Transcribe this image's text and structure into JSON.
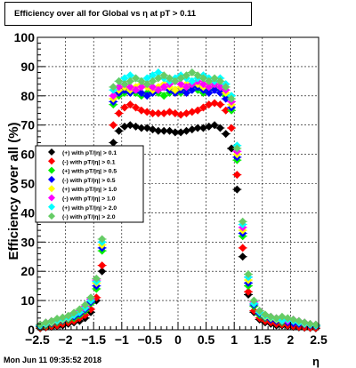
{
  "chart_data": {
    "type": "scatter",
    "title": "Efficiency over all for Global vs   η at pT > 0.11",
    "xlabel": "η",
    "ylabel": "Efficiency over all (%)",
    "xlim": [
      -2.5,
      2.5
    ],
    "ylim": [
      0,
      100
    ],
    "x_ticks": [
      -2.5,
      -2,
      -1.5,
      -1,
      -0.5,
      0,
      0.5,
      1,
      1.5,
      2,
      2.5
    ],
    "x_tick_labels": [
      "−2.5",
      "−2",
      "−1.5",
      "−1",
      "−0.5",
      "0",
      "0.5",
      "1",
      "1.5",
      "2",
      "2.5"
    ],
    "y_ticks": [
      0,
      10,
      20,
      30,
      40,
      50,
      60,
      70,
      80,
      90,
      100
    ],
    "y_tick_labels": [
      "0",
      "10",
      "20",
      "30",
      "40",
      "50",
      "60",
      "70",
      "80",
      "90",
      "100"
    ],
    "grid": true,
    "legend_position": "middle-left",
    "x": [
      -2.45,
      -2.35,
      -2.25,
      -2.15,
      -2.05,
      -1.95,
      -1.85,
      -1.75,
      -1.65,
      -1.55,
      -1.45,
      -1.35,
      -1.25,
      -1.15,
      -1.05,
      -0.95,
      -0.85,
      -0.75,
      -0.65,
      -0.55,
      -0.45,
      -0.35,
      -0.25,
      -0.15,
      -0.05,
      0.05,
      0.15,
      0.25,
      0.35,
      0.45,
      0.55,
      0.65,
      0.75,
      0.85,
      0.95,
      1.05,
      1.15,
      1.25,
      1.35,
      1.45,
      1.55,
      1.65,
      1.75,
      1.85,
      1.95,
      2.05,
      2.15,
      2.25,
      2.35,
      2.45
    ],
    "series": [
      {
        "name": "(+) with pT/|η| > 0.1",
        "color": "#000000",
        "values": [
          0.5,
          0.8,
          1.0,
          1.2,
          1.5,
          2.0,
          2.5,
          3.0,
          4.0,
          6.0,
          10.0,
          20.0,
          45.0,
          64.0,
          68.0,
          69.5,
          70.0,
          69.5,
          69.0,
          69.0,
          68.5,
          68.0,
          68.0,
          68.0,
          67.5,
          67.5,
          68.0,
          68.5,
          69.0,
          69.0,
          69.5,
          70.0,
          69.0,
          67.0,
          62.0,
          48.0,
          25.0,
          12.0,
          6.0,
          3.5,
          2.5,
          2.0,
          1.5,
          1.5,
          1.2,
          1.0,
          0.8,
          0.7,
          0.6,
          0.5
        ]
      },
      {
        "name": "(-) with pT/|η| > 0.1",
        "color": "#ff0000",
        "values": [
          0.6,
          0.9,
          1.2,
          1.5,
          2.0,
          2.5,
          3.0,
          4.0,
          5.0,
          7.0,
          11.0,
          22.0,
          48.0,
          70.0,
          74.0,
          76.0,
          77.0,
          76.0,
          75.0,
          74.5,
          74.0,
          74.0,
          74.0,
          74.5,
          74.0,
          73.5,
          74.0,
          74.5,
          75.0,
          76.0,
          77.0,
          77.5,
          77.0,
          75.0,
          69.0,
          53.0,
          28.0,
          13.0,
          6.5,
          4.0,
          3.0,
          2.5,
          2.0,
          1.8,
          1.5,
          1.2,
          1.0,
          0.8,
          0.7,
          0.6
        ]
      },
      {
        "name": "(+) with pT/|η| > 0.5",
        "color": "#00ee00",
        "values": [
          1.0,
          1.5,
          2.0,
          2.5,
          3.0,
          3.5,
          4.0,
          5.0,
          6.5,
          9.0,
          14.0,
          27.0,
          55.0,
          77.0,
          80.0,
          81.0,
          82.0,
          81.0,
          80.0,
          81.0,
          82.0,
          81.0,
          80.0,
          81.0,
          82.0,
          81.0,
          82.0,
          83.0,
          82.0,
          81.0,
          82.0,
          83.0,
          82.0,
          80.0,
          75.0,
          58.0,
          32.0,
          15.0,
          8.0,
          5.0,
          4.0,
          3.5,
          3.0,
          2.5,
          3.0,
          2.5,
          2.0,
          1.8,
          1.5,
          1.2
        ]
      },
      {
        "name": "(-) with pT/|η| > 0.5",
        "color": "#0000ff",
        "values": [
          1.2,
          1.8,
          2.2,
          2.8,
          3.2,
          3.8,
          4.5,
          5.5,
          7.0,
          9.5,
          15.0,
          28.0,
          56.0,
          78.0,
          81.0,
          82.0,
          81.0,
          82.0,
          81.0,
          80.0,
          81.0,
          82.0,
          83.0,
          82.0,
          81.0,
          82.0,
          81.0,
          82.0,
          83.0,
          82.0,
          81.0,
          82.0,
          81.0,
          79.0,
          76.0,
          59.0,
          33.0,
          16.0,
          8.5,
          5.5,
          4.2,
          3.5,
          3.0,
          2.8,
          2.5,
          2.2,
          2.0,
          1.8,
          1.5,
          1.3
        ]
      },
      {
        "name": "(+) with pT/|η| > 1.0",
        "color": "#ffff00",
        "values": [
          1.5,
          2.0,
          2.5,
          3.0,
          3.5,
          4.0,
          5.0,
          6.0,
          7.5,
          10.0,
          16.0,
          29.0,
          57.0,
          79.0,
          82.0,
          83.0,
          82.0,
          83.0,
          84.0,
          83.0,
          82.0,
          83.0,
          84.0,
          83.0,
          82.0,
          83.0,
          84.0,
          85.0,
          84.0,
          83.0,
          84.0,
          85.0,
          84.0,
          81.0,
          77.0,
          60.0,
          34.0,
          17.0,
          9.0,
          6.0,
          4.5,
          4.0,
          3.5,
          3.0,
          3.5,
          3.0,
          2.5,
          2.0,
          1.8,
          1.5
        ]
      },
      {
        "name": "(-) with pT/|η| > 1.0",
        "color": "#ff00ff",
        "values": [
          1.8,
          2.5,
          3.0,
          3.5,
          4.0,
          4.5,
          5.5,
          6.5,
          8.0,
          10.5,
          17.0,
          30.0,
          58.0,
          80.0,
          83.0,
          84.0,
          83.0,
          82.0,
          83.0,
          84.0,
          83.0,
          82.0,
          83.0,
          84.0,
          85.0,
          84.0,
          83.0,
          84.0,
          85.0,
          84.0,
          83.0,
          84.0,
          83.0,
          82.0,
          78.0,
          61.0,
          35.0,
          18.0,
          9.5,
          6.5,
          5.0,
          4.5,
          4.0,
          3.5,
          3.0,
          3.5,
          3.0,
          2.5,
          2.0,
          1.8
        ]
      },
      {
        "name": "(+) with pT/|η| > 2.0",
        "color": "#00ffff",
        "values": [
          1.5,
          2.2,
          2.8,
          3.2,
          3.8,
          4.2,
          5.0,
          6.0,
          7.5,
          10.0,
          16.5,
          30.0,
          60.0,
          82.0,
          85.0,
          86.0,
          87.0,
          86.0,
          85.0,
          86.0,
          87.0,
          88.0,
          86.0,
          85.0,
          86.0,
          87.0,
          86.0,
          85.0,
          86.0,
          87.0,
          86.0,
          85.0,
          86.0,
          84.0,
          80.0,
          63.0,
          36.0,
          18.0,
          9.0,
          6.0,
          4.8,
          4.2,
          3.8,
          3.2,
          3.5,
          3.0,
          2.5,
          2.2,
          1.8,
          1.5
        ]
      },
      {
        "name": "(-) with pT/|η| > 2.0",
        "color": "#66cc66",
        "values": [
          1.8,
          2.5,
          3.0,
          3.8,
          4.2,
          4.8,
          5.8,
          7.0,
          8.5,
          11.0,
          17.5,
          31.0,
          61.0,
          83.0,
          85.0,
          84.0,
          85.0,
          86.0,
          85.0,
          84.0,
          85.0,
          86.0,
          87.0,
          86.0,
          85.0,
          86.0,
          87.0,
          88.0,
          87.0,
          86.0,
          85.0,
          86.0,
          85.0,
          83.0,
          79.0,
          62.0,
          37.0,
          19.0,
          10.0,
          6.5,
          5.2,
          4.5,
          4.0,
          4.5,
          4.0,
          3.5,
          3.0,
          2.5,
          2.0,
          1.8
        ]
      }
    ]
  },
  "timestamp": "Mon Jun 11 09:35:52 2018"
}
